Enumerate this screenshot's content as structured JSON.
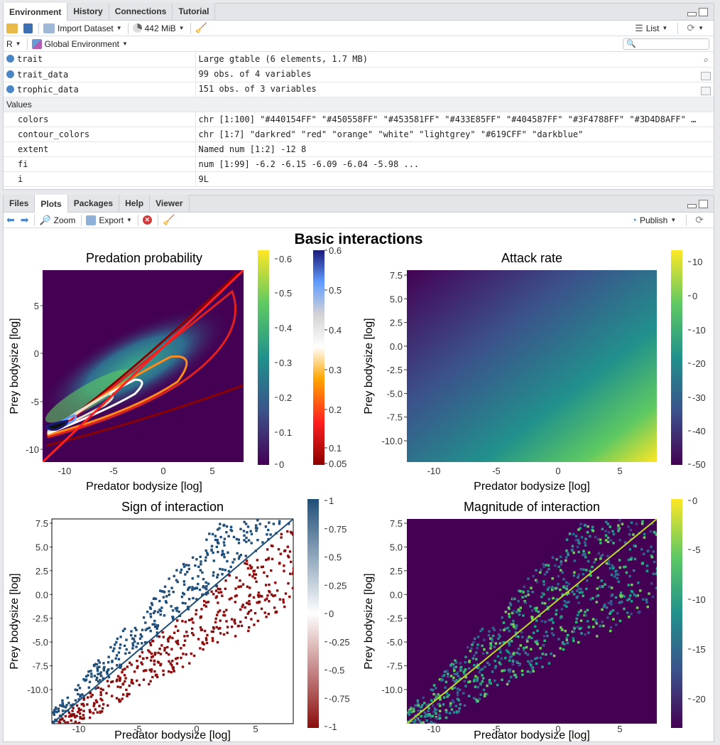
{
  "env": {
    "tabs": [
      "Environment",
      "History",
      "Connections",
      "Tutorial"
    ],
    "toolbar": {
      "import_label": "Import Dataset",
      "memory": "442 MiB",
      "list_label": "List"
    },
    "lang": "R",
    "scope": "Global Environment",
    "rows": [
      {
        "name": "trait",
        "value": "Large gtable (6 elements,  1.7 MB)"
      },
      {
        "name": "trait_data",
        "value": "99 obs. of 4 variables"
      },
      {
        "name": "trophic_data",
        "value": "151 obs. of 3 variables"
      }
    ],
    "values_header": "Values",
    "values": [
      {
        "name": "colors",
        "value": "chr [1:100] \"#440154FF\" \"#450558FF\" \"#453581FF\" \"#433E85FF\" \"#404587FF\" \"#3F4788FF\" \"#3D4D8AFF\" …"
      },
      {
        "name": "contour_colors",
        "value": "chr [1:7] \"darkred\" \"red\" \"orange\" \"white\" \"lightgrey\" \"#619CFF\" \"darkblue\""
      },
      {
        "name": "extent",
        "value": "Named num [1:2] -12 8"
      },
      {
        "name": "fi",
        "value": "num [1:99] -6.2 -6.15 -6.09 -6.04 -5.98 ..."
      },
      {
        "name": "i",
        "value": "9L"
      }
    ]
  },
  "plots": {
    "tabs": [
      "Files",
      "Plots",
      "Packages",
      "Help",
      "Viewer"
    ],
    "toolbar": {
      "zoom_label": "Zoom",
      "export_label": "Export",
      "publish_label": "Publish"
    },
    "main_title": "Basic interactions",
    "panels": [
      {
        "title": "Predation probability",
        "xlabel": "Predator bodysize [log]",
        "ylabel": "Prey bodysize [log]",
        "xticks": [
          "-10",
          "-5",
          "0",
          "5"
        ],
        "yticks": [
          "5",
          "0",
          "-5",
          "-10"
        ],
        "cbar1": [
          "0.6",
          "0.5",
          "0.4",
          "0.3",
          "0.2",
          "0.1",
          "0"
        ],
        "cbar2": [
          "0.6",
          "0.5",
          "0.4",
          "0.3",
          "0.2",
          "0.1",
          "0.05"
        ]
      },
      {
        "title": "Attack rate",
        "xlabel": "Predator bodysize [log]",
        "ylabel": "Prey bodysize [log]",
        "xticks": [
          "-10",
          "-5",
          "0",
          "5"
        ],
        "yticks": [
          "7.5",
          "5.0",
          "2.5",
          "0.0",
          "-2.5",
          "-5.0",
          "-7.5",
          "-10.0"
        ],
        "cbar": [
          "10",
          "0",
          "-10",
          "-20",
          "-30",
          "-40",
          "-50"
        ]
      },
      {
        "title": "Sign of interaction",
        "xlabel": "Predator bodysize [log]",
        "ylabel": "Prey bodysize [log]",
        "xticks": [
          "-10",
          "-5",
          "0",
          "5"
        ],
        "yticks": [
          "7.5",
          "5.0",
          "2.5",
          "0.0",
          "-2.5",
          "-5.0",
          "-7.5",
          "-10.0"
        ],
        "cbar": [
          "1",
          "0.75",
          "0.5",
          "0.25",
          "0",
          "-0.25",
          "-0.5",
          "-0.75",
          "-1"
        ]
      },
      {
        "title": "Magnitude of interaction",
        "xlabel": "Predator bodysize [log]",
        "ylabel": "Prey bodysize [log]",
        "xticks": [
          "-10",
          "-5",
          "0",
          "5"
        ],
        "yticks": [
          "7.5",
          "5.0",
          "2.5",
          "0.0",
          "-2.5",
          "-5.0",
          "-7.5",
          "-10.0"
        ],
        "cbar": [
          "0",
          "-5",
          "-10",
          "-15",
          "-20"
        ]
      }
    ]
  }
}
